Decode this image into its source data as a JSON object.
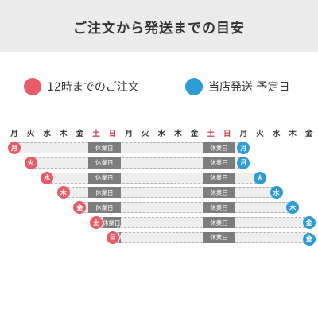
{
  "title": "ご注文から発送までの目安",
  "legend": {
    "order": {
      "label": "12時までのご注文",
      "color": "#e85c68"
    },
    "ship": {
      "label": "当店発送 予定日",
      "color": "#2e9bd6"
    }
  },
  "weekdays": [
    "月",
    "火",
    "水",
    "木",
    "金",
    "土",
    "日",
    "月",
    "火",
    "水",
    "木",
    "金",
    "土",
    "日",
    "月",
    "火",
    "水",
    "木",
    "金"
  ],
  "holiday_label": "休業日",
  "rows": [
    {
      "order": "月",
      "ship": "月"
    },
    {
      "order": "火",
      "ship": "月"
    },
    {
      "order": "水",
      "ship": "火"
    },
    {
      "order": "木",
      "ship": "水"
    },
    {
      "order": "金",
      "ship": "木"
    },
    {
      "order": "土",
      "ship": "金"
    },
    {
      "order": "日",
      "ship": "金"
    }
  ]
}
